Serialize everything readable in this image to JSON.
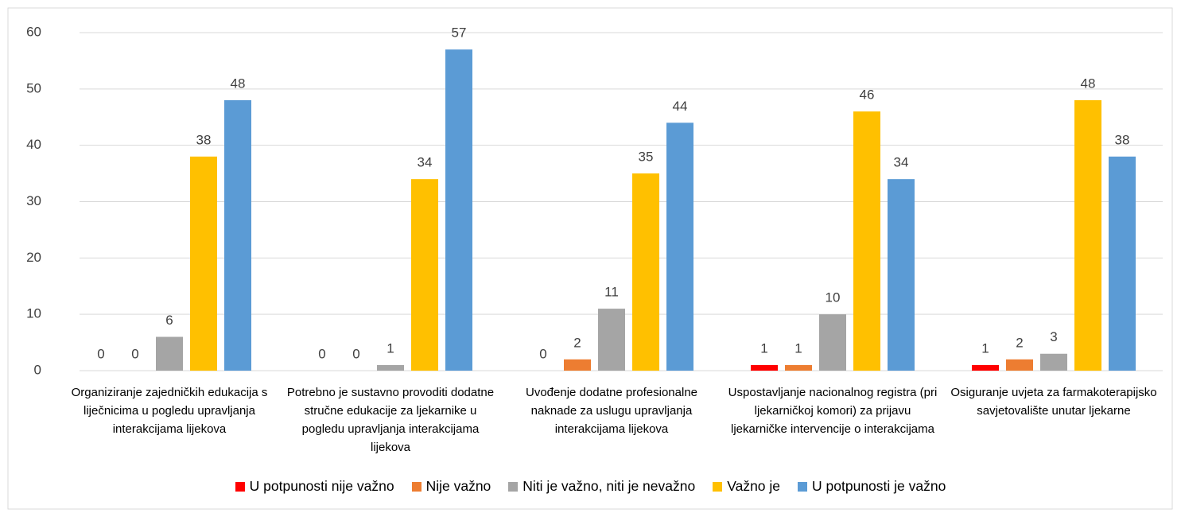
{
  "chart_data": {
    "type": "bar",
    "categories": [
      "Organiziranje zajedničkih edukacija s liječnicima u pogledu upravljanja interakcijama lijekova",
      "Potrebno je sustavno provoditi dodatne stručne edukacije za ljekarnike u pogledu upravljanja interakcijama lijekova",
      "Uvođenje dodatne profesionalne naknade za uslugu upravljanja interakcijama lijekova",
      "Uspostavljanje nacionalnog registra (pri ljekarničkoj komori) za prijavu ljekarničke intervencije o interakcijama",
      "Osiguranje uvjeta za farmakoterapijsko savjetovalište unutar ljekarne"
    ],
    "series": [
      {
        "name": "U potpunosti nije važno",
        "color": "#ff0000",
        "values": [
          0,
          0,
          0,
          1,
          1
        ]
      },
      {
        "name": "Nije važno",
        "color": "#ed7d31",
        "values": [
          0,
          0,
          2,
          1,
          2
        ]
      },
      {
        "name": "Niti je važno, niti je nevažno",
        "color": "#a5a5a5",
        "values": [
          6,
          1,
          11,
          10,
          3
        ]
      },
      {
        "name": "Važno je",
        "color": "#ffc000",
        "values": [
          38,
          34,
          35,
          46,
          48
        ]
      },
      {
        "name": "U potpunosti je važno",
        "color": "#5b9bd5",
        "values": [
          48,
          57,
          44,
          34,
          38
        ]
      }
    ],
    "ylim": [
      0,
      60
    ],
    "yticks": [
      0,
      10,
      20,
      30,
      40,
      50,
      60
    ],
    "grid": true,
    "legend": "bottom"
  }
}
